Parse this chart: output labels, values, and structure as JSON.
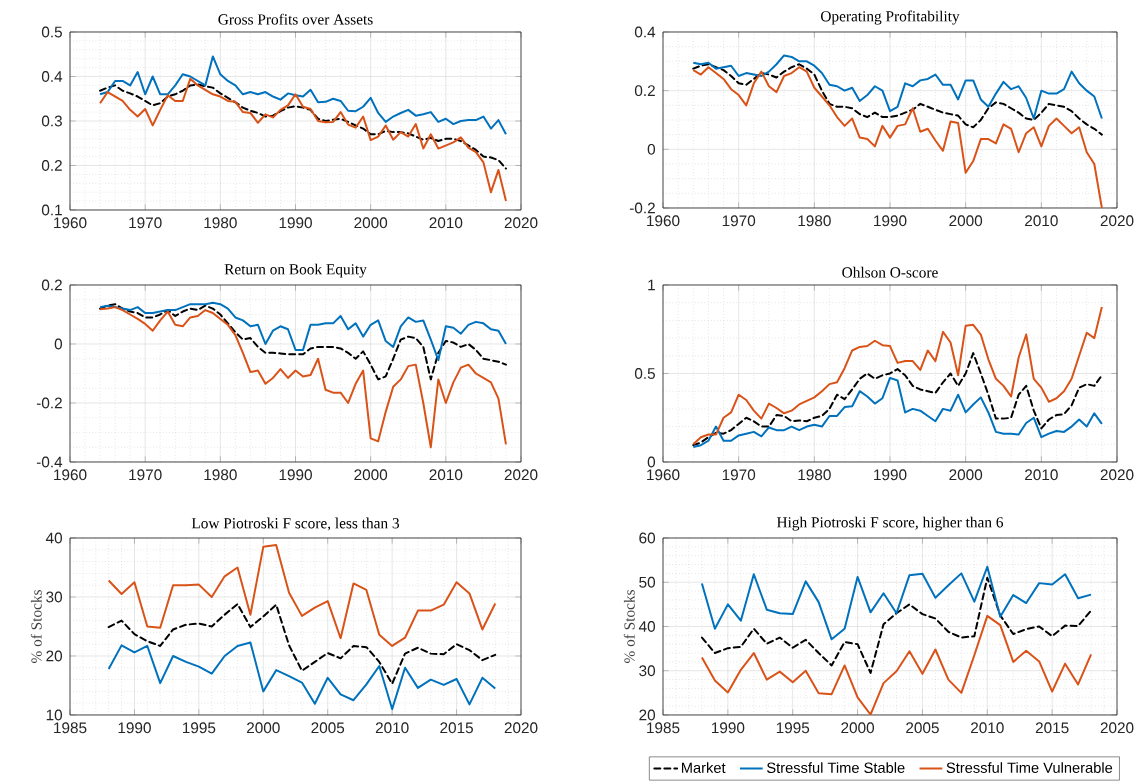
{
  "chart_data": [
    {
      "type": "line",
      "title": "Gross Profits over Assets",
      "x": [
        1964,
        1965,
        1966,
        1967,
        1968,
        1969,
        1970,
        1971,
        1972,
        1973,
        1974,
        1975,
        1976,
        1977,
        1978,
        1979,
        1980,
        1981,
        1982,
        1983,
        1984,
        1985,
        1986,
        1987,
        1988,
        1989,
        1990,
        1991,
        1992,
        1993,
        1994,
        1995,
        1996,
        1997,
        1998,
        1999,
        2000,
        2001,
        2002,
        2003,
        2004,
        2005,
        2006,
        2007,
        2008,
        2009,
        2010,
        2011,
        2012,
        2013,
        2014,
        2015,
        2016,
        2017,
        2018
      ],
      "xlim": [
        1960,
        2020
      ],
      "ylim": [
        0.1,
        0.5
      ],
      "xticks": [
        1960,
        1970,
        1980,
        1990,
        2000,
        2010,
        2020
      ],
      "yticks": [
        0.1,
        0.2,
        0.3,
        0.4,
        0.5
      ],
      "grid": true,
      "series": [
        {
          "color": "#000000",
          "line_style": "dashed",
          "values": [
            0.368,
            0.375,
            0.38,
            0.368,
            0.362,
            0.355,
            0.345,
            0.335,
            0.34,
            0.355,
            0.36,
            0.368,
            0.38,
            0.382,
            0.378,
            0.375,
            0.362,
            0.352,
            0.342,
            0.33,
            0.323,
            0.318,
            0.31,
            0.312,
            0.322,
            0.33,
            0.333,
            0.33,
            0.325,
            0.305,
            0.3,
            0.303,
            0.305,
            0.298,
            0.29,
            0.283,
            0.27,
            0.27,
            0.278,
            0.275,
            0.275,
            0.272,
            0.265,
            0.258,
            0.262,
            0.255,
            0.26,
            0.26,
            0.255,
            0.245,
            0.235,
            0.22,
            0.218,
            0.212,
            0.193
          ]
        },
        {
          "color": "#0072bd",
          "line_style": "solid",
          "values": [
            0.36,
            0.365,
            0.39,
            0.39,
            0.38,
            0.41,
            0.36,
            0.4,
            0.36,
            0.36,
            0.38,
            0.405,
            0.4,
            0.39,
            0.38,
            0.445,
            0.405,
            0.39,
            0.38,
            0.36,
            0.365,
            0.36,
            0.365,
            0.355,
            0.348,
            0.362,
            0.358,
            0.355,
            0.37,
            0.342,
            0.343,
            0.35,
            0.345,
            0.323,
            0.322,
            0.332,
            0.352,
            0.318,
            0.298,
            0.31,
            0.318,
            0.325,
            0.312,
            0.315,
            0.32,
            0.298,
            0.305,
            0.293,
            0.3,
            0.302,
            0.302,
            0.31,
            0.283,
            0.302,
            0.27
          ]
        },
        {
          "color": "#d95319",
          "line_style": "solid",
          "values": [
            0.34,
            0.365,
            0.355,
            0.345,
            0.325,
            0.31,
            0.327,
            0.29,
            0.325,
            0.358,
            0.345,
            0.345,
            0.395,
            0.38,
            0.37,
            0.36,
            0.355,
            0.345,
            0.343,
            0.32,
            0.318,
            0.296,
            0.315,
            0.308,
            0.325,
            0.335,
            0.36,
            0.332,
            0.327,
            0.3,
            0.297,
            0.298,
            0.32,
            0.292,
            0.285,
            0.31,
            0.257,
            0.265,
            0.29,
            0.258,
            0.275,
            0.265,
            0.293,
            0.238,
            0.27,
            0.238,
            0.245,
            0.252,
            0.263,
            0.24,
            0.23,
            0.207,
            0.14,
            0.19,
            0.12
          ]
        }
      ]
    },
    {
      "type": "line",
      "title": "Operating Profitability",
      "x": [
        1964,
        1965,
        1966,
        1967,
        1968,
        1969,
        1970,
        1971,
        1972,
        1973,
        1974,
        1975,
        1976,
        1977,
        1978,
        1979,
        1980,
        1981,
        1982,
        1983,
        1984,
        1985,
        1986,
        1987,
        1988,
        1989,
        1990,
        1991,
        1992,
        1993,
        1994,
        1995,
        1996,
        1997,
        1998,
        1999,
        2000,
        2001,
        2002,
        2003,
        2004,
        2005,
        2006,
        2007,
        2008,
        2009,
        2010,
        2011,
        2012,
        2013,
        2014,
        2015,
        2016,
        2017,
        2018
      ],
      "xlim": [
        1960,
        2020
      ],
      "ylim": [
        -0.2,
        0.4
      ],
      "xticks": [
        1960,
        1970,
        1980,
        1990,
        2000,
        2010,
        2020
      ],
      "yticks": [
        -0.2,
        0,
        0.2,
        0.4
      ],
      "grid": true,
      "series": [
        {
          "color": "#000000",
          "line_style": "dashed",
          "values": [
            0.275,
            0.285,
            0.29,
            0.28,
            0.27,
            0.25,
            0.225,
            0.22,
            0.24,
            0.26,
            0.255,
            0.245,
            0.265,
            0.28,
            0.29,
            0.275,
            0.255,
            0.2,
            0.155,
            0.145,
            0.145,
            0.14,
            0.12,
            0.11,
            0.125,
            0.11,
            0.11,
            0.115,
            0.125,
            0.135,
            0.155,
            0.145,
            0.135,
            0.125,
            0.12,
            0.115,
            0.085,
            0.075,
            0.1,
            0.14,
            0.16,
            0.155,
            0.14,
            0.125,
            0.105,
            0.1,
            0.125,
            0.155,
            0.15,
            0.145,
            0.13,
            0.105,
            0.085,
            0.07,
            0.05
          ]
        },
        {
          "color": "#0072bd",
          "line_style": "solid",
          "values": [
            0.295,
            0.29,
            0.295,
            0.275,
            0.28,
            0.285,
            0.25,
            0.26,
            0.255,
            0.25,
            0.265,
            0.29,
            0.32,
            0.315,
            0.3,
            0.3,
            0.285,
            0.26,
            0.22,
            0.215,
            0.2,
            0.21,
            0.165,
            0.185,
            0.215,
            0.2,
            0.13,
            0.145,
            0.225,
            0.215,
            0.235,
            0.24,
            0.255,
            0.22,
            0.22,
            0.17,
            0.235,
            0.235,
            0.17,
            0.145,
            0.19,
            0.23,
            0.205,
            0.215,
            0.175,
            0.105,
            0.2,
            0.19,
            0.19,
            0.205,
            0.265,
            0.225,
            0.2,
            0.18,
            0.105
          ]
        },
        {
          "color": "#d95319",
          "line_style": "solid",
          "values": [
            0.27,
            0.255,
            0.28,
            0.26,
            0.24,
            0.205,
            0.185,
            0.15,
            0.225,
            0.265,
            0.215,
            0.195,
            0.25,
            0.26,
            0.28,
            0.265,
            0.21,
            0.18,
            0.15,
            0.11,
            0.08,
            0.105,
            0.04,
            0.035,
            0.01,
            0.08,
            0.04,
            0.08,
            0.085,
            0.14,
            0.06,
            0.07,
            0.03,
            -0.005,
            0.095,
            0.09,
            -0.08,
            -0.04,
            0.035,
            0.035,
            0.02,
            0.085,
            0.07,
            -0.01,
            0.055,
            0.075,
            0.01,
            0.08,
            0.105,
            0.08,
            0.055,
            0.075,
            -0.01,
            -0.05,
            -0.2
          ]
        }
      ]
    },
    {
      "type": "line",
      "title": "Return on Book Equity",
      "x": [
        1964,
        1965,
        1966,
        1967,
        1968,
        1969,
        1970,
        1971,
        1972,
        1973,
        1974,
        1975,
        1976,
        1977,
        1978,
        1979,
        1980,
        1981,
        1982,
        1983,
        1984,
        1985,
        1986,
        1987,
        1988,
        1989,
        1990,
        1991,
        1992,
        1993,
        1994,
        1995,
        1996,
        1997,
        1998,
        1999,
        2000,
        2001,
        2002,
        2003,
        2004,
        2005,
        2006,
        2007,
        2008,
        2009,
        2010,
        2011,
        2012,
        2013,
        2014,
        2015,
        2016,
        2017,
        2018
      ],
      "xlim": [
        1960,
        2020
      ],
      "ylim": [
        -0.4,
        0.2
      ],
      "xticks": [
        1960,
        1970,
        1980,
        1990,
        2000,
        2010,
        2020
      ],
      "yticks": [
        -0.4,
        -0.2,
        0,
        0.2
      ],
      "grid": true,
      "series": [
        {
          "color": "#000000",
          "line_style": "dashed",
          "values": [
            0.12,
            0.13,
            0.135,
            0.12,
            0.11,
            0.105,
            0.09,
            0.09,
            0.1,
            0.115,
            0.095,
            0.11,
            0.12,
            0.115,
            0.13,
            0.12,
            0.1,
            0.07,
            0.04,
            0.015,
            0.02,
            -0.01,
            -0.03,
            -0.03,
            -0.032,
            -0.035,
            -0.035,
            -0.035,
            -0.015,
            -0.01,
            -0.01,
            -0.01,
            -0.015,
            -0.03,
            -0.05,
            -0.025,
            -0.07,
            -0.12,
            -0.11,
            -0.05,
            0.015,
            0.025,
            0.02,
            -0.01,
            -0.12,
            -0.03,
            0.01,
            0.005,
            -0.01,
            0,
            -0.02,
            -0.05,
            -0.055,
            -0.06,
            -0.07
          ]
        },
        {
          "color": "#0072bd",
          "line_style": "solid",
          "values": [
            0.125,
            0.13,
            0.125,
            0.12,
            0.115,
            0.125,
            0.105,
            0.105,
            0.11,
            0.115,
            0.115,
            0.125,
            0.135,
            0.135,
            0.135,
            0.14,
            0.135,
            0.12,
            0.09,
            0.08,
            0.06,
            0.065,
            0,
            0.045,
            0.06,
            0.05,
            -0.02,
            -0.02,
            0.065,
            0.065,
            0.07,
            0.07,
            0.095,
            0.05,
            0.07,
            0.025,
            0.065,
            0.08,
            0.01,
            -0.01,
            0.06,
            0.09,
            0.075,
            0.08,
            0.015,
            -0.055,
            0.06,
            0.055,
            0.035,
            0.065,
            0.075,
            0.07,
            0.05,
            0.045,
            0
          ]
        },
        {
          "color": "#d95319",
          "line_style": "solid",
          "values": [
            0.118,
            0.12,
            0.125,
            0.115,
            0.1,
            0.085,
            0.068,
            0.045,
            0.08,
            0.11,
            0.065,
            0.06,
            0.09,
            0.095,
            0.115,
            0.105,
            0.085,
            0.065,
            0.03,
            -0.03,
            -0.095,
            -0.09,
            -0.135,
            -0.115,
            -0.085,
            -0.115,
            -0.09,
            -0.11,
            -0.105,
            -0.05,
            -0.155,
            -0.165,
            -0.165,
            -0.2,
            -0.135,
            -0.09,
            -0.32,
            -0.33,
            -0.23,
            -0.145,
            -0.12,
            -0.075,
            -0.07,
            -0.2,
            -0.35,
            -0.12,
            -0.2,
            -0.13,
            -0.08,
            -0.07,
            -0.1,
            -0.115,
            -0.13,
            -0.185,
            -0.34
          ]
        }
      ]
    },
    {
      "type": "line",
      "title": "Ohlson O-score",
      "x": [
        1964,
        1965,
        1966,
        1967,
        1968,
        1969,
        1970,
        1971,
        1972,
        1973,
        1974,
        1975,
        1976,
        1977,
        1978,
        1979,
        1980,
        1981,
        1982,
        1983,
        1984,
        1985,
        1986,
        1987,
        1988,
        1989,
        1990,
        1991,
        1992,
        1993,
        1994,
        1995,
        1996,
        1997,
        1998,
        1999,
        2000,
        2001,
        2002,
        2003,
        2004,
        2005,
        2006,
        2007,
        2008,
        2009,
        2010,
        2011,
        2012,
        2013,
        2014,
        2015,
        2016,
        2017,
        2018
      ],
      "xlim": [
        1960,
        2020
      ],
      "ylim": [
        0,
        1
      ],
      "xticks": [
        1960,
        1970,
        1980,
        1990,
        2000,
        2010,
        2020
      ],
      "yticks": [
        0,
        0.5,
        1
      ],
      "grid": true,
      "series": [
        {
          "color": "#000000",
          "line_style": "dashed",
          "values": [
            0.095,
            0.11,
            0.14,
            0.165,
            0.16,
            0.18,
            0.215,
            0.25,
            0.23,
            0.2,
            0.2,
            0.265,
            0.26,
            0.23,
            0.235,
            0.23,
            0.25,
            0.26,
            0.3,
            0.38,
            0.355,
            0.41,
            0.47,
            0.5,
            0.47,
            0.49,
            0.5,
            0.525,
            0.49,
            0.43,
            0.41,
            0.4,
            0.39,
            0.45,
            0.5,
            0.43,
            0.5,
            0.615,
            0.5,
            0.38,
            0.245,
            0.245,
            0.25,
            0.38,
            0.43,
            0.29,
            0.19,
            0.24,
            0.265,
            0.27,
            0.32,
            0.42,
            0.44,
            0.43,
            0.49
          ]
        },
        {
          "color": "#0072bd",
          "line_style": "solid",
          "values": [
            0.085,
            0.095,
            0.12,
            0.2,
            0.12,
            0.12,
            0.15,
            0.16,
            0.17,
            0.145,
            0.195,
            0.18,
            0.18,
            0.2,
            0.18,
            0.2,
            0.21,
            0.2,
            0.26,
            0.26,
            0.31,
            0.315,
            0.4,
            0.37,
            0.33,
            0.36,
            0.475,
            0.46,
            0.28,
            0.3,
            0.29,
            0.26,
            0.23,
            0.3,
            0.29,
            0.38,
            0.28,
            0.325,
            0.365,
            0.28,
            0.17,
            0.16,
            0.16,
            0.155,
            0.22,
            0.25,
            0.14,
            0.16,
            0.175,
            0.17,
            0.2,
            0.24,
            0.2,
            0.275,
            0.215
          ]
        },
        {
          "color": "#d95319",
          "line_style": "solid",
          "values": [
            0.1,
            0.14,
            0.155,
            0.155,
            0.25,
            0.28,
            0.38,
            0.35,
            0.29,
            0.245,
            0.33,
            0.305,
            0.275,
            0.29,
            0.325,
            0.345,
            0.365,
            0.4,
            0.44,
            0.45,
            0.53,
            0.63,
            0.65,
            0.655,
            0.685,
            0.66,
            0.655,
            0.56,
            0.57,
            0.57,
            0.52,
            0.63,
            0.57,
            0.735,
            0.675,
            0.49,
            0.77,
            0.775,
            0.72,
            0.58,
            0.47,
            0.43,
            0.37,
            0.59,
            0.72,
            0.47,
            0.42,
            0.34,
            0.36,
            0.4,
            0.47,
            0.6,
            0.73,
            0.7,
            0.875
          ]
        }
      ]
    },
    {
      "type": "line",
      "title": "Low Piotroski F score, less than 3",
      "ylabel": "% of Stocks",
      "x": [
        1988,
        1989,
        1990,
        1991,
        1992,
        1993,
        1994,
        1995,
        1996,
        1997,
        1998,
        1999,
        2000,
        2001,
        2002,
        2003,
        2004,
        2005,
        2006,
        2007,
        2008,
        2009,
        2010,
        2011,
        2012,
        2013,
        2014,
        2015,
        2016,
        2017,
        2018
      ],
      "xlim": [
        1985,
        2020
      ],
      "ylim": [
        10,
        40
      ],
      "xticks": [
        1985,
        1990,
        1995,
        2000,
        2005,
        2010,
        2015,
        2020
      ],
      "yticks": [
        10,
        20,
        30,
        40
      ],
      "grid": true,
      "series": [
        {
          "color": "#000000",
          "line_style": "dashed",
          "values": [
            24.9,
            26,
            23.7,
            22.5,
            21.7,
            24.5,
            25.3,
            25.5,
            25,
            27,
            28.8,
            24.9,
            26.7,
            28.7,
            21.8,
            17.5,
            19,
            20.5,
            19.6,
            21.7,
            21.5,
            19,
            15.3,
            20.4,
            21.4,
            20.4,
            20.3,
            22,
            21,
            19.3,
            20.2
          ]
        },
        {
          "color": "#0072bd",
          "line_style": "solid",
          "values": [
            17.8,
            21.8,
            20.6,
            21.7,
            15.4,
            20,
            19,
            18.2,
            17,
            20,
            21.7,
            22.3,
            14,
            17.6,
            16.6,
            15.5,
            11.9,
            16.3,
            13.5,
            12.5,
            15.2,
            18.3,
            11,
            18,
            14.6,
            16,
            15.1,
            16.1,
            11.8,
            16.3,
            14.5
          ]
        },
        {
          "color": "#d95319",
          "line_style": "solid",
          "values": [
            32.8,
            30.5,
            32.5,
            25,
            24.8,
            32,
            32,
            32.1,
            30,
            33.5,
            35,
            27,
            38.5,
            38.8,
            30.7,
            26.8,
            28.2,
            29.3,
            23,
            32.3,
            31.2,
            23.6,
            21.7,
            23.1,
            27.7,
            27.7,
            28.7,
            32.5,
            30.6,
            24.5,
            28.9
          ]
        }
      ]
    },
    {
      "type": "line",
      "title": "High Piotroski F score, higher than 6",
      "ylabel": "% of Stocks",
      "x": [
        1988,
        1989,
        1990,
        1991,
        1992,
        1993,
        1994,
        1995,
        1996,
        1997,
        1998,
        1999,
        2000,
        2001,
        2002,
        2003,
        2004,
        2005,
        2006,
        2007,
        2008,
        2009,
        2010,
        2011,
        2012,
        2013,
        2014,
        2015,
        2016,
        2017,
        2018
      ],
      "xlim": [
        1985,
        2020
      ],
      "ylim": [
        20,
        60
      ],
      "xticks": [
        1985,
        1990,
        1995,
        2000,
        2005,
        2010,
        2015,
        2020
      ],
      "yticks": [
        20,
        30,
        40,
        50,
        60
      ],
      "grid": true,
      "legend": "bottom",
      "series": [
        {
          "name": "Market",
          "color": "#000000",
          "line_style": "dashed",
          "values": [
            37.5,
            34,
            35.1,
            35.4,
            39.5,
            36.1,
            37.5,
            35.2,
            37,
            34,
            31.2,
            36.5,
            36,
            29.5,
            40.5,
            43,
            45,
            42.8,
            41.8,
            38.8,
            37.5,
            37.8,
            51,
            42.5,
            38.3,
            39.4,
            40,
            37.8,
            40.2,
            40.1,
            43.6
          ]
        },
        {
          "name": "Stressful Time Stable",
          "color": "#0072bd",
          "line_style": "solid",
          "values": [
            49.7,
            39.5,
            45,
            41.3,
            51.8,
            43.8,
            43,
            42.8,
            50.2,
            45.5,
            37.1,
            39.5,
            51.2,
            43.2,
            47.5,
            43,
            51.6,
            51.9,
            46.5,
            49.3,
            52,
            45.6,
            53.5,
            42.2,
            47.1,
            45.3,
            49.8,
            49.5,
            51.8,
            46.4,
            47.2
          ]
        },
        {
          "name": "Stressful Time Vulnerable",
          "color": "#d95319",
          "line_style": "solid",
          "values": [
            33,
            27.8,
            25.1,
            30.2,
            34,
            28,
            29.8,
            27.4,
            30,
            24.9,
            24.7,
            31.2,
            24,
            20.1,
            27.2,
            29.9,
            34.4,
            29.3,
            34.8,
            28,
            25,
            33.5,
            42.4,
            40.3,
            32,
            34.5,
            32.1,
            25.3,
            31.6,
            26.9,
            33.7
          ]
        }
      ]
    }
  ]
}
